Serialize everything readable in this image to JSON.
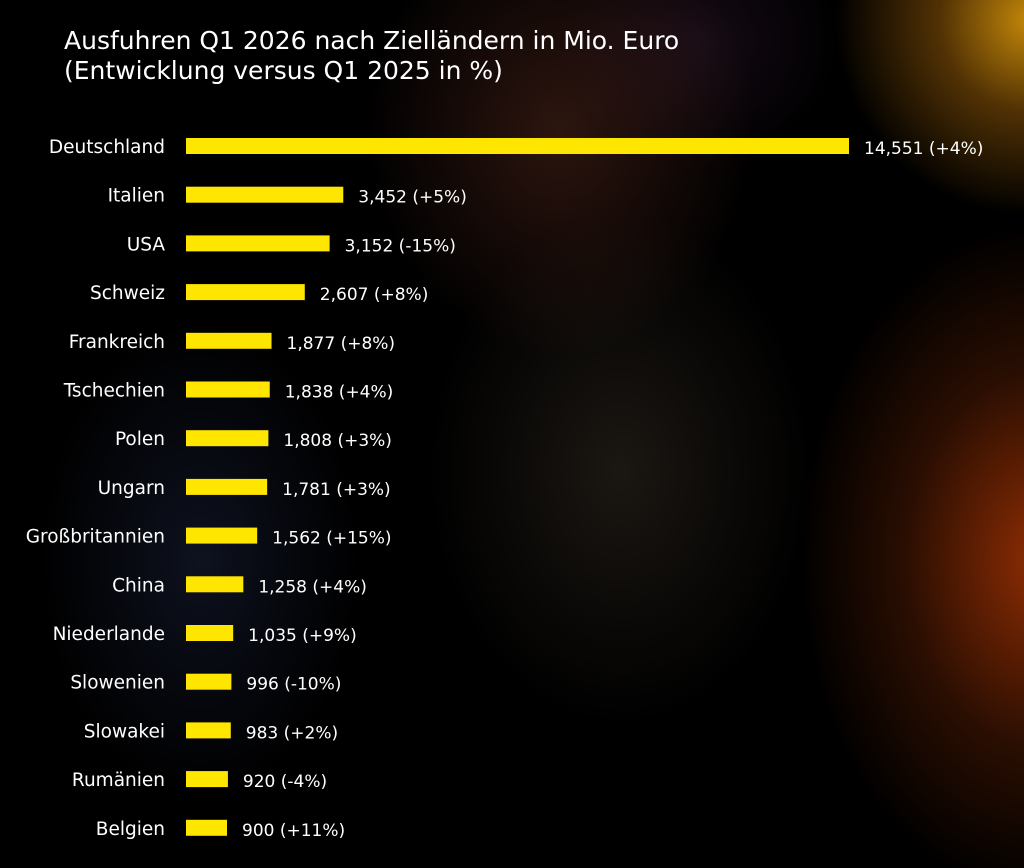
{
  "chart_data": {
    "type": "bar",
    "orientation": "horizontal",
    "title": "Ausfuhren Q1 2026 nach Zielländern in Mio. Euro",
    "subtitle": "(Entwicklung versus Q1 2025 in %)",
    "categories": [
      "Deutschland",
      "Italien",
      "USA",
      "Schweiz",
      "Frankreich",
      "Tschechien",
      "Polen",
      "Ungarn",
      "Großbritannien",
      "China",
      "Niederlande",
      "Slowenien",
      "Slowakei",
      "Rumänien",
      "Belgien"
    ],
    "values": [
      14551,
      3452,
      3152,
      2607,
      1877,
      1838,
      1808,
      1781,
      1562,
      1258,
      1035,
      996,
      983,
      920,
      900
    ],
    "data_labels": [
      "14,551 (+4%)",
      "3,452 (+5%)",
      "3,152 (-15%)",
      "2,607 (+8%)",
      "1,877 (+8%)",
      "1,838 (+4%)",
      "1,808 (+3%)",
      "1,781 (+3%)",
      "1,562 (+15%)",
      "1,258 (+4%)",
      "1,035 (+9%)",
      "996 (-10%)",
      "983 (+2%)",
      "920 (-4%)",
      "900 (+11%)"
    ],
    "xlim": [
      0,
      14551
    ],
    "grid": false,
    "legend": "none",
    "bar_color": "#FFE600",
    "background_color": "#000000",
    "text_color": "#FFFFFF"
  }
}
